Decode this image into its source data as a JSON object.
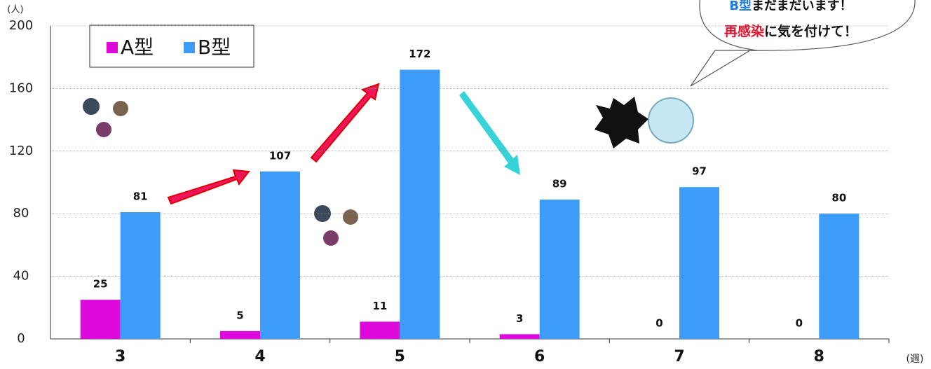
{
  "chart_data": {
    "type": "bar",
    "y_unit": "(人)",
    "x_unit": "(週)",
    "categories": [
      "3",
      "4",
      "5",
      "6",
      "7",
      "8"
    ],
    "series": [
      {
        "name": "A型",
        "color": "#dd0adb",
        "values": [
          25,
          5,
          11,
          3,
          0,
          0
        ]
      },
      {
        "name": "B型",
        "color": "#3d9cf7",
        "values": [
          81,
          107,
          172,
          89,
          97,
          80
        ]
      }
    ],
    "ylim": [
      0,
      200
    ],
    "yticks": [
      0,
      40,
      80,
      120,
      160,
      200
    ],
    "grid": true,
    "annotation": {
      "lines": [
        [
          "B型",
          "まだまだいます！"
        ],
        [
          "再感染",
          "に気を付けて！"
        ]
      ]
    }
  }
}
